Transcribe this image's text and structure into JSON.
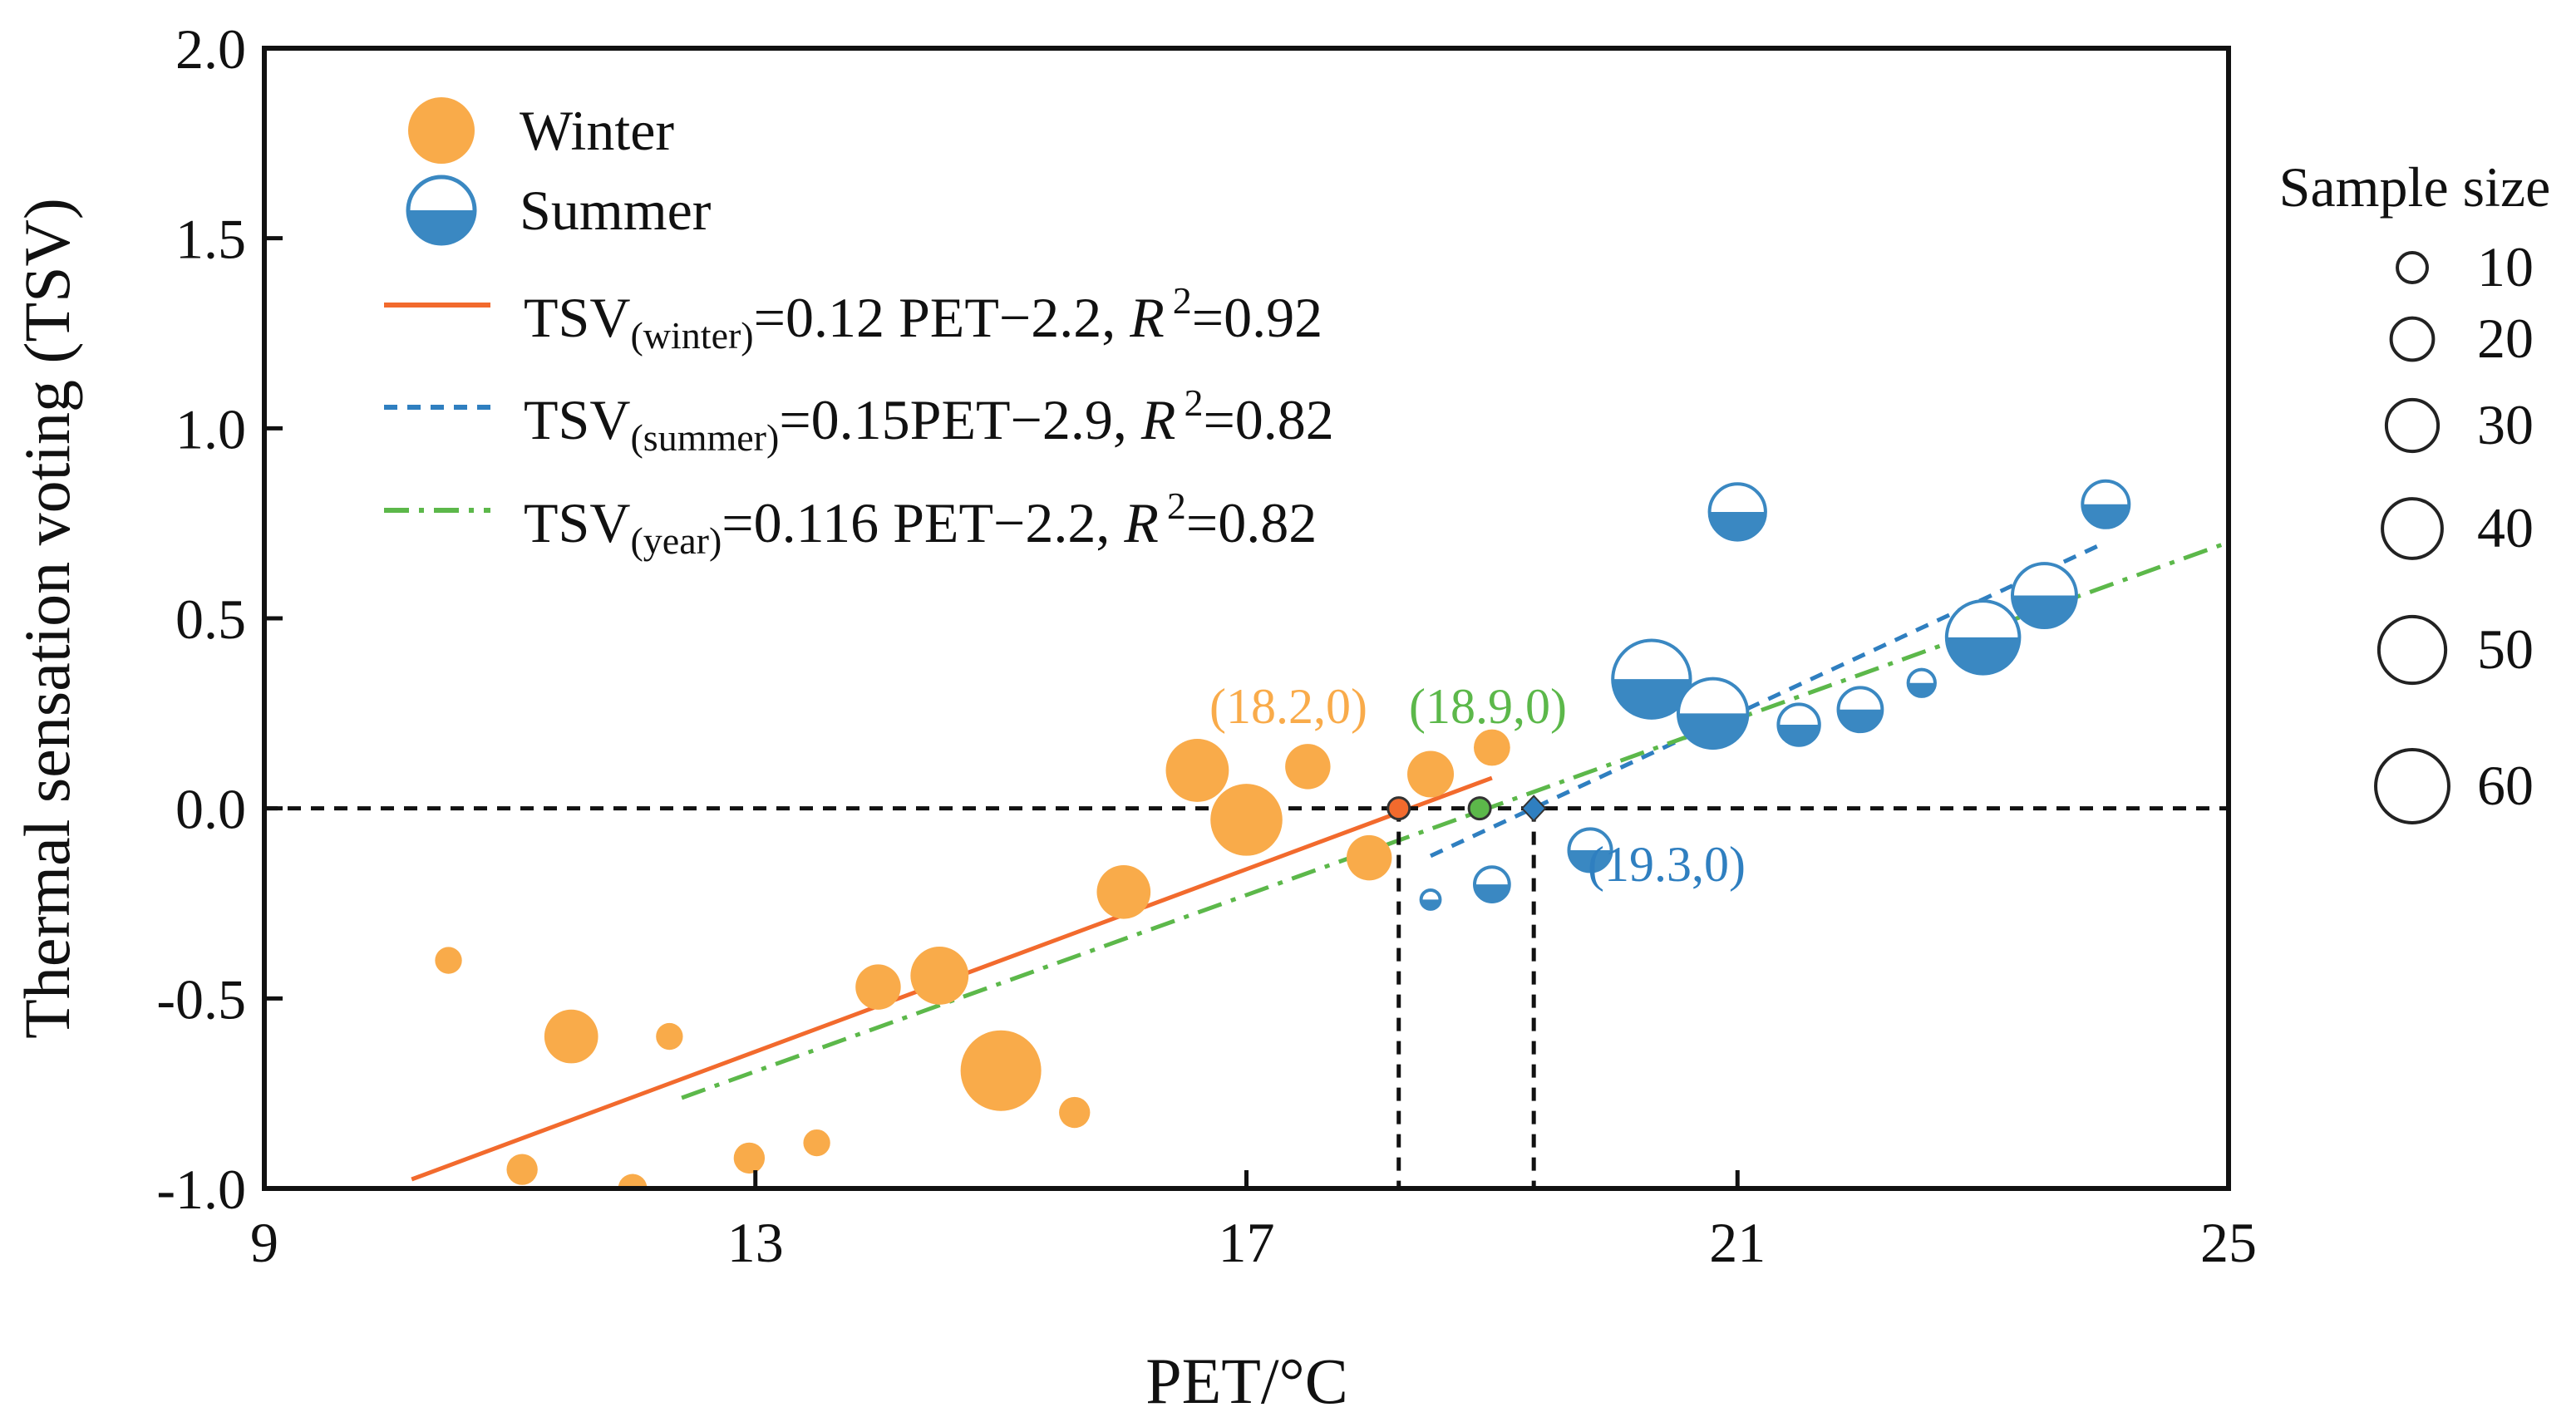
{
  "chart_data": {
    "type": "scatter",
    "title": "",
    "xlabel": "PET/°C",
    "ylabel": "Thermal sensation voting (TSV)",
    "xlim": [
      9,
      25
    ],
    "ylim": [
      -1.0,
      2.0
    ],
    "xticks": [
      9,
      13,
      17,
      21,
      25
    ],
    "xtick_labels": [
      "9",
      "13",
      "17",
      "21",
      "25"
    ],
    "yticks": [
      -1.0,
      -0.5,
      0.0,
      0.5,
      1.0,
      1.5,
      2.0
    ],
    "ytick_labels": [
      "-1.0",
      "-0.5",
      "0.0",
      "0.5",
      "1.0",
      "1.5",
      "2.0"
    ],
    "grid": false,
    "series": [
      {
        "name": "Winter",
        "color": "#f9ab4a",
        "marker": "filled-circle",
        "points": [
          {
            "x": 10.5,
            "y": -0.4,
            "n": 6
          },
          {
            "x": 11.1,
            "y": -0.95,
            "n": 8
          },
          {
            "x": 11.5,
            "y": -0.6,
            "n": 24
          },
          {
            "x": 12.0,
            "y": -1.0,
            "n": 7
          },
          {
            "x": 12.3,
            "y": -0.6,
            "n": 6
          },
          {
            "x": 12.95,
            "y": -0.92,
            "n": 8
          },
          {
            "x": 13.5,
            "y": -0.88,
            "n": 6
          },
          {
            "x": 14.0,
            "y": -0.47,
            "n": 17
          },
          {
            "x": 14.5,
            "y": -0.44,
            "n": 28
          },
          {
            "x": 15.0,
            "y": -0.69,
            "n": 54
          },
          {
            "x": 15.6,
            "y": -0.8,
            "n": 8
          },
          {
            "x": 16.0,
            "y": -0.22,
            "n": 24
          },
          {
            "x": 16.6,
            "y": 0.1,
            "n": 33
          },
          {
            "x": 17.0,
            "y": -0.03,
            "n": 43
          },
          {
            "x": 17.5,
            "y": 0.11,
            "n": 17
          },
          {
            "x": 18.0,
            "y": -0.13,
            "n": 17
          },
          {
            "x": 18.5,
            "y": 0.09,
            "n": 18
          },
          {
            "x": 19.0,
            "y": 0.16,
            "n": 11
          }
        ]
      },
      {
        "name": "Summer",
        "color": "#3a88c2",
        "marker": "half-filled-circle",
        "points": [
          {
            "x": 18.5,
            "y": -0.24,
            "n": 3
          },
          {
            "x": 19.0,
            "y": -0.2,
            "n": 10
          },
          {
            "x": 19.8,
            "y": -0.11,
            "n": 15
          },
          {
            "x": 20.3,
            "y": 0.34,
            "n": 50
          },
          {
            "x": 20.8,
            "y": 0.25,
            "n": 40
          },
          {
            "x": 21.0,
            "y": 0.78,
            "n": 26
          },
          {
            "x": 21.5,
            "y": 0.22,
            "n": 14
          },
          {
            "x": 22.0,
            "y": 0.26,
            "n": 16
          },
          {
            "x": 22.5,
            "y": 0.33,
            "n": 6
          },
          {
            "x": 23.0,
            "y": 0.45,
            "n": 44
          },
          {
            "x": 23.5,
            "y": 0.56,
            "n": 34
          },
          {
            "x": 24.0,
            "y": 0.8,
            "n": 18
          }
        ]
      }
    ],
    "fits": [
      {
        "name": "winter",
        "label": "TSV",
        "subscript": "(winter)",
        "equation": "=0.12 PET−2.2, ",
        "r_label": "R",
        "r_sup": "2",
        "r_value": "=0.92",
        "style": "solid",
        "color": "#f26a2d",
        "x_range": [
          10.2,
          19.0
        ],
        "slope": 0.12,
        "intercept": -2.2
      },
      {
        "name": "summer",
        "label": "TSV",
        "subscript": "(summer)",
        "equation": "=0.15PET−2.9, ",
        "r_label": "R",
        "r_sup": "2",
        "r_value": "=0.82",
        "style": "dashed",
        "color": "#2f7fc0",
        "x_range": [
          18.5,
          24.0
        ],
        "slope": 0.15,
        "intercept": -2.9
      },
      {
        "name": "year",
        "label": "TSV",
        "subscript": "(year)",
        "equation": "=0.116 PET−2.2, ",
        "r_label": "R",
        "r_sup": "2",
        "r_value": "=0.82",
        "style": "dashdot",
        "color": "#5cb84a",
        "x_range": [
          12.4,
          25.0
        ],
        "slope": 0.116,
        "intercept": -2.2
      }
    ],
    "zero_line": {
      "y": 0.0,
      "style": "dashed",
      "color": "#111111"
    },
    "crossings": [
      {
        "x": 18.2,
        "y": 0,
        "label": "(18.2,0)",
        "color": "#f9ab4a",
        "marker_color": "#f26a2d",
        "marker": "circle",
        "drop_line": true
      },
      {
        "x": 18.9,
        "y": 0,
        "label": "(18.9,0)",
        "color": "#5cb84a",
        "marker_color": "#5cb84a",
        "marker": "circle",
        "drop_line": false
      },
      {
        "x": 19.3,
        "y": 0,
        "label": "(19.3,0)",
        "color": "#2f7fc0",
        "marker_color": "#2f7fc0",
        "marker": "diamond",
        "drop_line": true
      }
    ],
    "size_legend": {
      "title": "Sample size",
      "entries": [
        10,
        20,
        30,
        40,
        50,
        60
      ],
      "labels": [
        "10",
        "20",
        "30",
        "40",
        "50",
        "60"
      ]
    },
    "legend_position": "upper-left"
  }
}
